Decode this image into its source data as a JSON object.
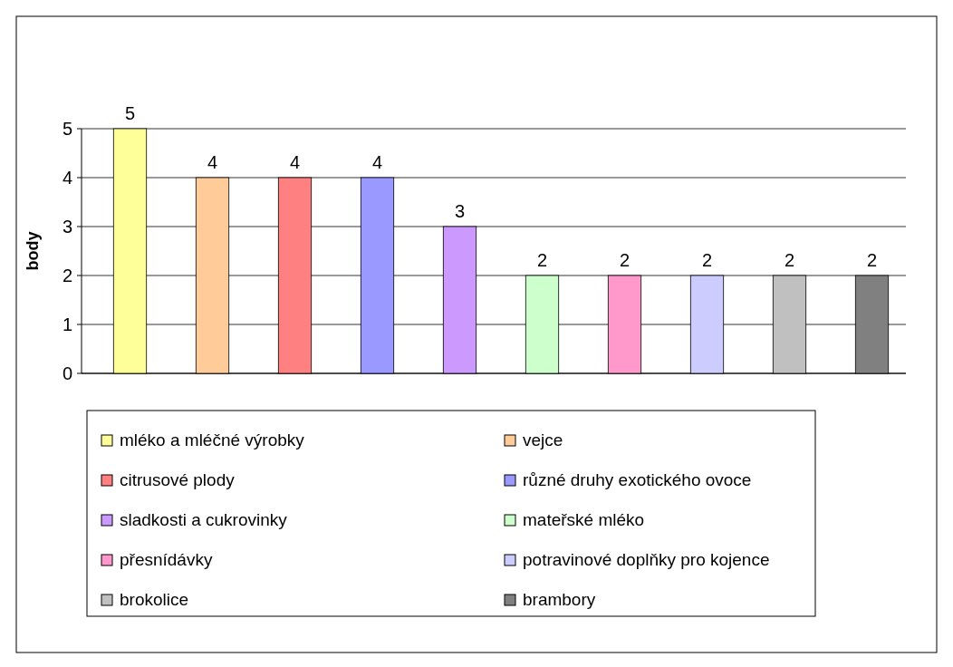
{
  "chart_data": {
    "type": "bar",
    "ylabel": "body",
    "categories": [
      null
    ],
    "ylim": [
      0,
      5
    ],
    "yticks": [
      0,
      1,
      2,
      3,
      4,
      5
    ],
    "grid": "y",
    "legend": "bottom",
    "data_labels": true,
    "series": [
      {
        "name": "mléko a mléčné výrobky",
        "color": "#ffff99",
        "values": [
          5
        ]
      },
      {
        "name": "vejce",
        "color": "#ffcc99",
        "values": [
          4
        ]
      },
      {
        "name": "citrusové plody",
        "color": "#ff8080",
        "values": [
          4
        ]
      },
      {
        "name": "různé druhy exotického ovoce",
        "color": "#9999ff",
        "values": [
          4
        ]
      },
      {
        "name": "sladkosti a cukrovinky",
        "color": "#cc99ff",
        "values": [
          3
        ]
      },
      {
        "name": "mateřské mléko",
        "color": "#ccffcc",
        "values": [
          2
        ]
      },
      {
        "name": "přesnídávky",
        "color": "#ff99cc",
        "values": [
          2
        ]
      },
      {
        "name": "potravinové doplňky pro kojence",
        "color": "#ccccff",
        "values": [
          2
        ]
      },
      {
        "name": "brokolice",
        "color": "#c0c0c0",
        "values": [
          2
        ]
      },
      {
        "name": "brambory",
        "color": "#808080",
        "values": [
          2
        ]
      }
    ]
  }
}
